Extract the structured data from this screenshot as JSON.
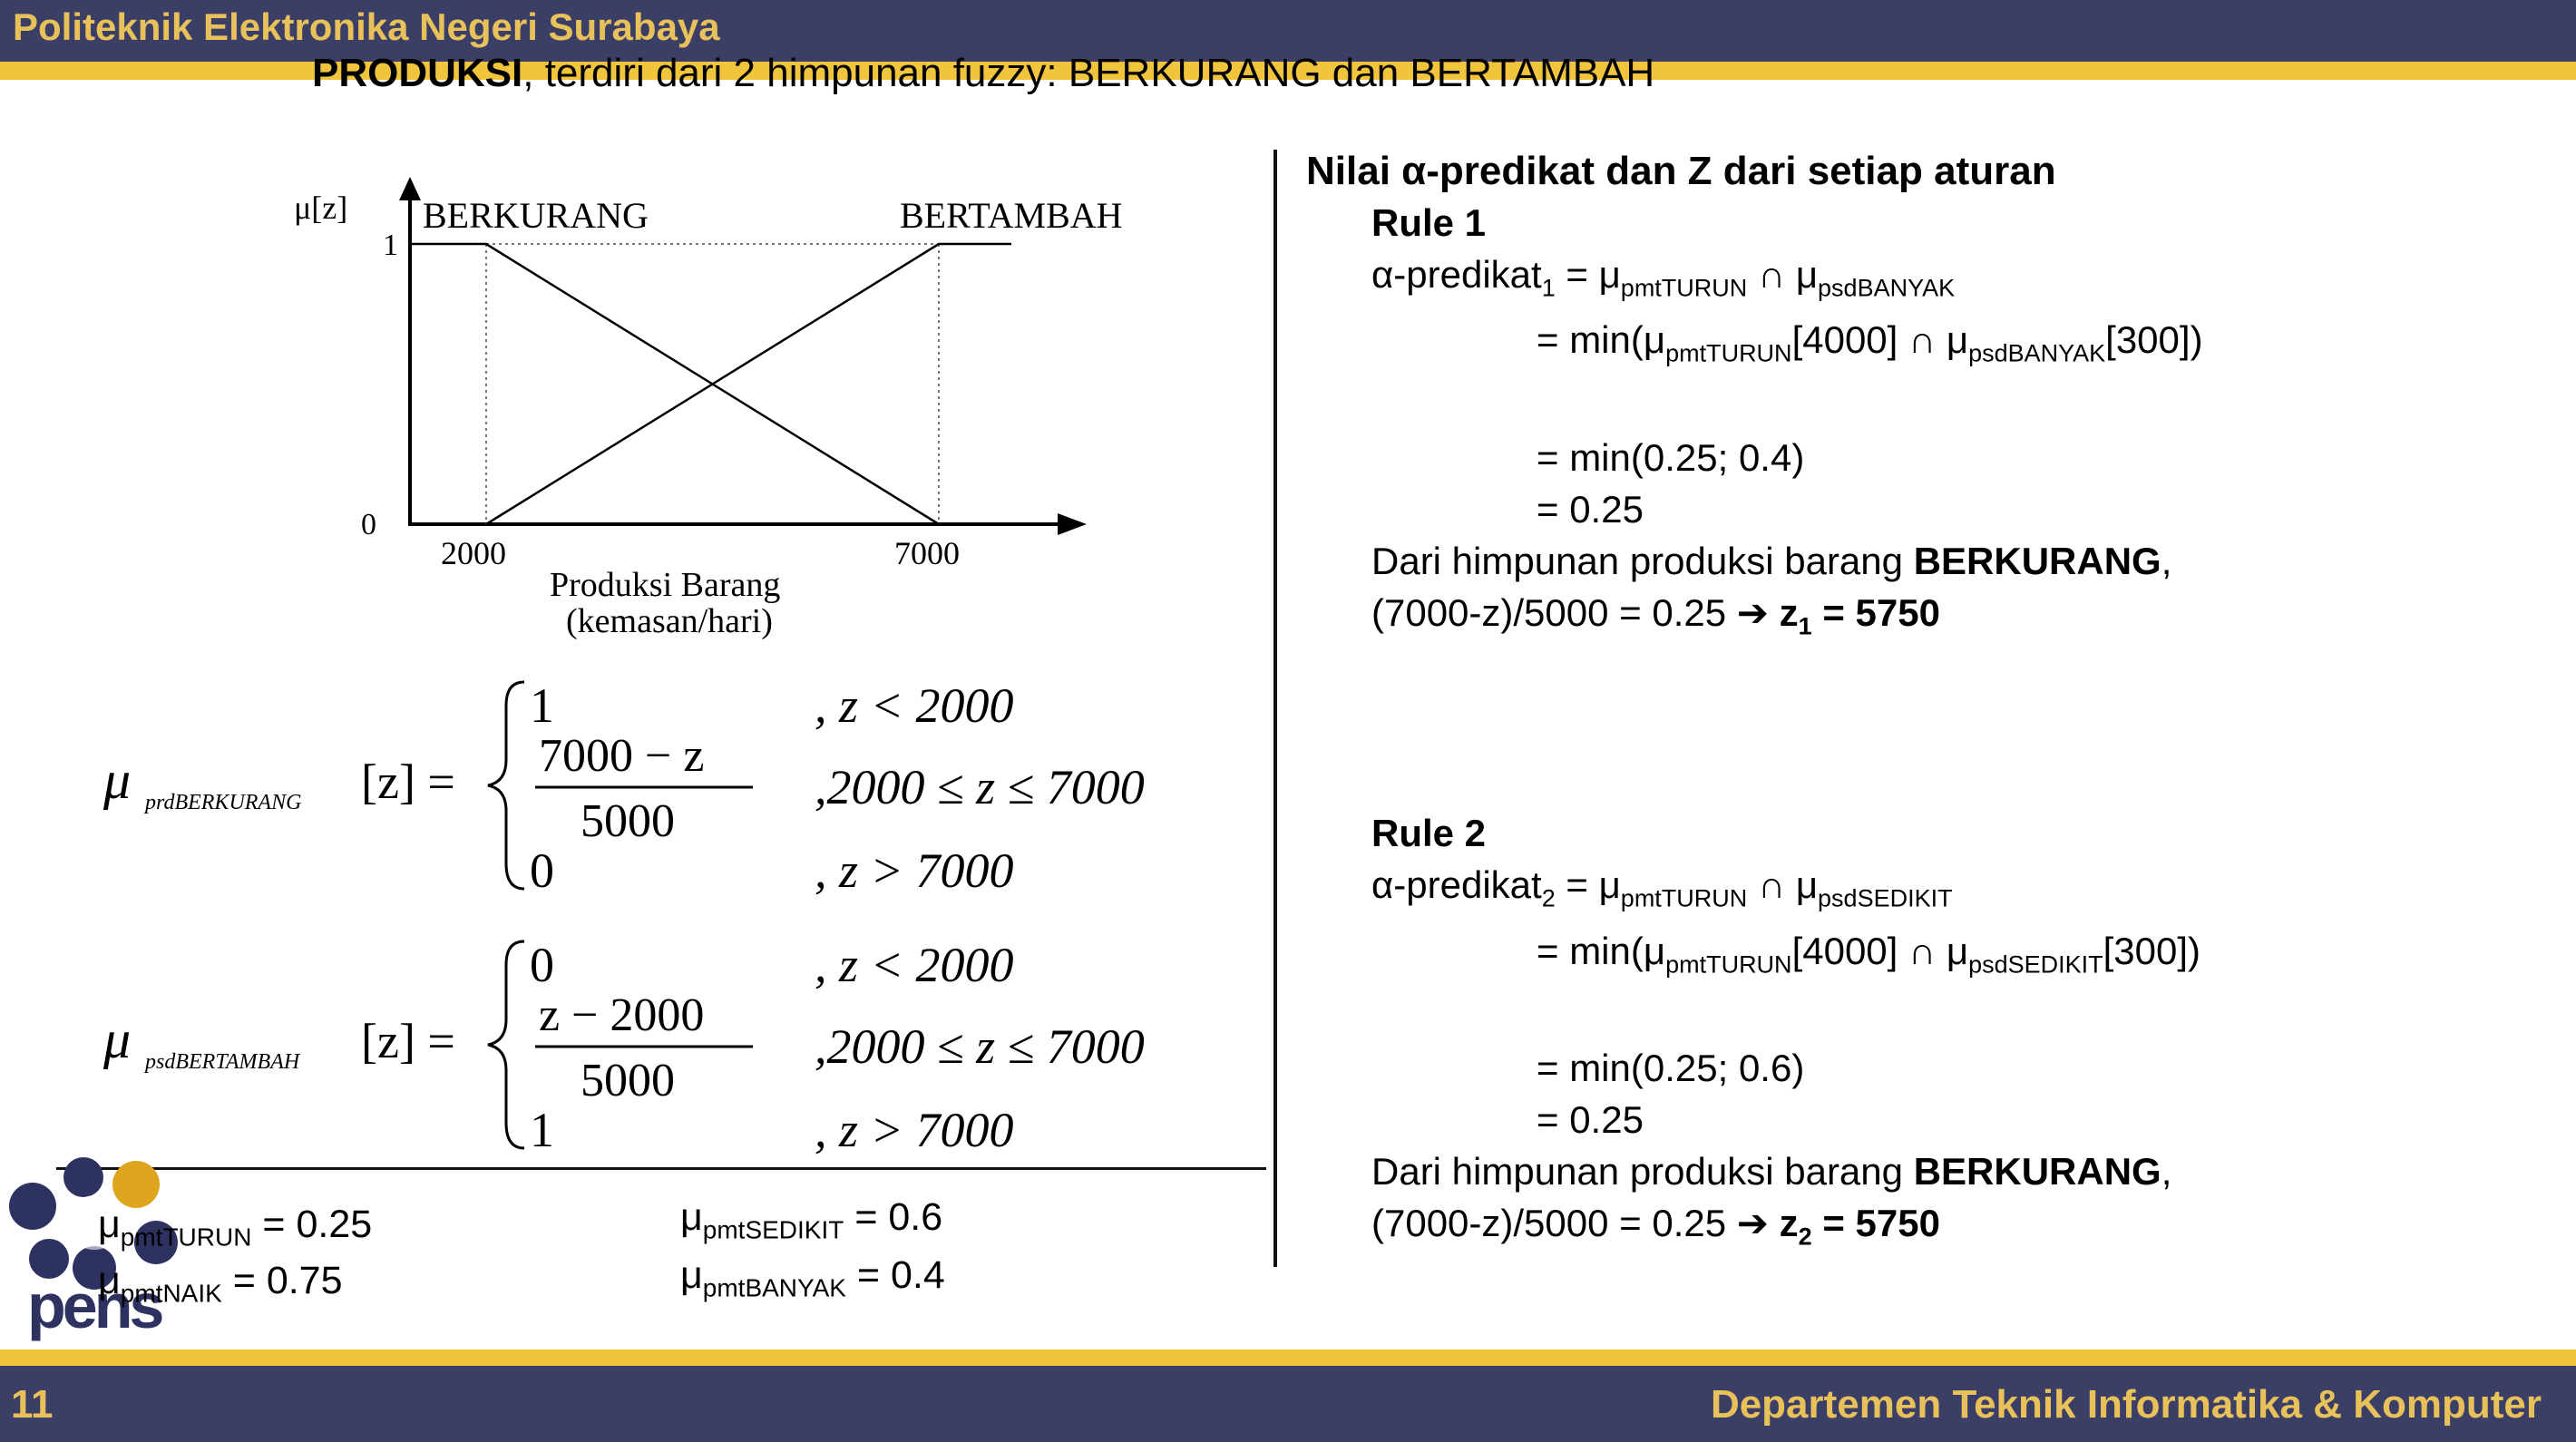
{
  "header": {
    "institution": "Politeknik Elektronika Negeri Surabaya"
  },
  "footer": {
    "page_number": "11",
    "department": "Departemen Teknik Informatika & Komputer"
  },
  "slide": {
    "heading_bold": "PRODUKSI",
    "heading_rest": ", terdiri dari 2 himpunan fuzzy: BERKURANG dan BERTAMBAH"
  },
  "chart": {
    "y_label": "μ[z]",
    "y_ticks": [
      "1",
      "0"
    ],
    "x_ticks": [
      "2000",
      "7000"
    ],
    "set_left": "BERKURANG",
    "set_right": "BERTAMBAH",
    "x_label_line1": "Produksi Barang",
    "x_label_line2": "(kemasan/hari)"
  },
  "formulas": {
    "f1": {
      "lhs_mu": "μ",
      "lhs_sub": "prdBERKURANG",
      "lhs_arg": "[z] =",
      "case1_val": "1",
      "case1_cond": ", z < 2000",
      "case2_num": "7000 − z",
      "case2_den": "5000",
      "case2_cond": ",2000 ≤ z ≤ 7000",
      "case3_val": "0",
      "case3_cond": ", z > 7000"
    },
    "f2": {
      "lhs_mu": "μ",
      "lhs_sub": "psdBERTAMBAH",
      "lhs_arg": "[z] =",
      "case1_val": "0",
      "case1_cond": ", z < 2000",
      "case2_num": "z − 2000",
      "case2_den": "5000",
      "case2_cond": ",2000 ≤ z ≤ 7000",
      "case3_val": "1",
      "case3_cond": ", z > 7000"
    }
  },
  "memberships": {
    "turun": {
      "sub": "pmtTURUN",
      "value": " = 0.25"
    },
    "naik": {
      "sub": "pmtNAIK",
      "value": " = 0.75"
    },
    "sedikit": {
      "sub": "pmtSEDIKIT",
      "value": " = 0.6"
    },
    "banyak": {
      "sub": "pmtBANYAK",
      "value": " = 0.4"
    }
  },
  "right": {
    "title": "Nilai α-predikat dan Z dari setiap aturan",
    "rule1": {
      "label": "Rule 1",
      "alpha_lhs": "α-predikat",
      "alpha_idx": "1",
      "alpha_s1": "pmtTURUN",
      "alpha_s2": "psdBANYAK",
      "min_s1": "pmtTURUN",
      "min_v1": "[4000]",
      "min_s2": "psdBANYAK",
      "min_v2": "[300])",
      "min_values": "= min(0.25; 0.4)",
      "result": "= 0.25",
      "from_text": "Dari himpunan produksi barang ",
      "from_set": "BERKURANG",
      "eq_text": "(7000-z)/5000 = 0.25 ",
      "z_label": "z",
      "z_idx": "1",
      "z_value": " = 5750"
    },
    "rule2": {
      "label": "Rule 2",
      "alpha_lhs": "α-predikat",
      "alpha_idx": "2",
      "alpha_s1": "pmtTURUN",
      "alpha_s2": "psdSEDIKIT",
      "min_s1": "pmtTURUN",
      "min_v1": "[4000]",
      "min_s2": "psdSEDIKIT",
      "min_v2": "[300])",
      "min_values": "= min(0.25; 0.6)",
      "result": "= 0.25",
      "from_text": "Dari himpunan produksi barang ",
      "from_set": "BERKURANG",
      "eq_text": "(7000-z)/5000 = 0.25 ",
      "z_label": "z",
      "z_idx": "2",
      "z_value": " = 5750"
    }
  },
  "logo": {
    "text": "pens"
  }
}
